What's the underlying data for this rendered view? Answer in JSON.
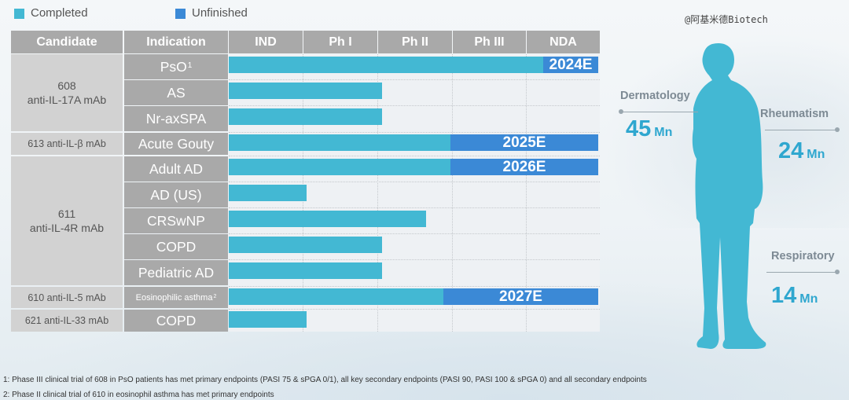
{
  "legend": {
    "completed_label": "Completed",
    "unfinished_label": "Unfinished",
    "completed_color": "#43b8d3",
    "unfinished_color": "#3b89d6"
  },
  "watermark": "@阿基米德Biotech",
  "table": {
    "headers": [
      "Candidate",
      "Indication",
      "IND",
      "Ph I",
      "Ph II",
      "Ph III",
      "NDA"
    ],
    "candidates": [
      {
        "line1": "608",
        "line2": "anti-IL-17A mAb"
      },
      {
        "line1": "613 anti-IL-β mAb",
        "line2": ""
      },
      {
        "line1": "611",
        "line2": "anti-IL-4R mAb"
      },
      {
        "line1": "610 anti-IL-5 mAb",
        "line2": ""
      },
      {
        "line1": "621 anti-IL-33 mAb",
        "line2": ""
      }
    ],
    "rows": [
      {
        "indication": "PsO",
        "note": "1",
        "progress": 0.85,
        "completed_through": "Ph III",
        "target": "2024E"
      },
      {
        "indication": "AS",
        "note": "",
        "progress": 0.415,
        "completed_through": "Ph II",
        "target": ""
      },
      {
        "indication": "Nr-axSPA",
        "note": "",
        "progress": 0.415,
        "completed_through": "Ph II",
        "target": ""
      },
      {
        "indication": "Acute Gouty",
        "note": "",
        "progress": 0.6,
        "completed_through": "Ph II",
        "target": "2025E"
      },
      {
        "indication": "Adult AD",
        "note": "",
        "progress": 0.6,
        "completed_through": "Ph II",
        "target": "2026E"
      },
      {
        "indication": "AD (US)",
        "note": "",
        "progress": 0.21,
        "completed_through": "IND",
        "target": ""
      },
      {
        "indication": "CRSwNP",
        "note": "",
        "progress": 0.535,
        "completed_through": "Ph II",
        "target": ""
      },
      {
        "indication": "COPD",
        "note": "",
        "progress": 0.415,
        "completed_through": "Ph II",
        "target": ""
      },
      {
        "indication": "Pediatric AD",
        "note": "",
        "progress": 0.415,
        "completed_through": "Ph II",
        "target": ""
      },
      {
        "indication": "Eosinophilic asthma",
        "note": "2",
        "progress": 0.58,
        "completed_through": "Ph II",
        "target": "2027E"
      },
      {
        "indication": "COPD",
        "note": "",
        "progress": 0.21,
        "completed_through": "IND",
        "target": ""
      }
    ]
  },
  "stats": [
    {
      "category": "Dermatology",
      "value": "45",
      "unit": "Mn"
    },
    {
      "category": "Rheumatism",
      "value": "24",
      "unit": "Mn"
    },
    {
      "category": "Respiratory",
      "value": "14",
      "unit": "Mn"
    }
  ],
  "footnotes": [
    "1: Phase III clinical trial of 608 in PsO patients has met primary endpoints (PASI 75 & sPGA 0/1), all key secondary endpoints (PASI 90, PASI 100 & sPGA 0) and all secondary endpoints",
    "2: Phase II clinical trial of 610 in eosinophil asthma has met primary endpoints"
  ]
}
